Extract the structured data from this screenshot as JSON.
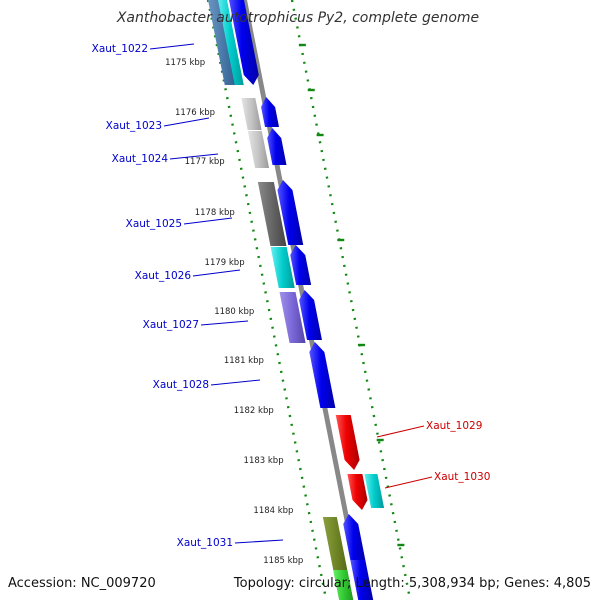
{
  "title": "Xanthobacter autotrophicus Py2, complete genome",
  "accession": "Accession: NC_009720",
  "topology": "Topology: circular; Length: 5,308,934 bp; Genes: 4,805",
  "kbp_ticks": [
    "1175 kbp",
    "1176 kbp",
    "1177 kbp",
    "1178 kbp",
    "1179 kbp",
    "1180 kbp",
    "1181 kbp",
    "1182 kbp",
    "1183 kbp",
    "1184 kbp",
    "1185 kbp"
  ],
  "gene_labels": [
    "Xaut_1022",
    "Xaut_1023",
    "Xaut_1024",
    "Xaut_1025",
    "Xaut_1026",
    "Xaut_1027",
    "Xaut_1028",
    "Xaut_1029",
    "Xaut_1030",
    "Xaut_1031"
  ],
  "colors": {
    "forward_cds": "#0000ee",
    "reverse_cds": "#ee0000",
    "forward_label": "#0000cc",
    "reverse_label": "#cc0000",
    "backbone": "#888888",
    "gc_dots": "#118811"
  }
}
